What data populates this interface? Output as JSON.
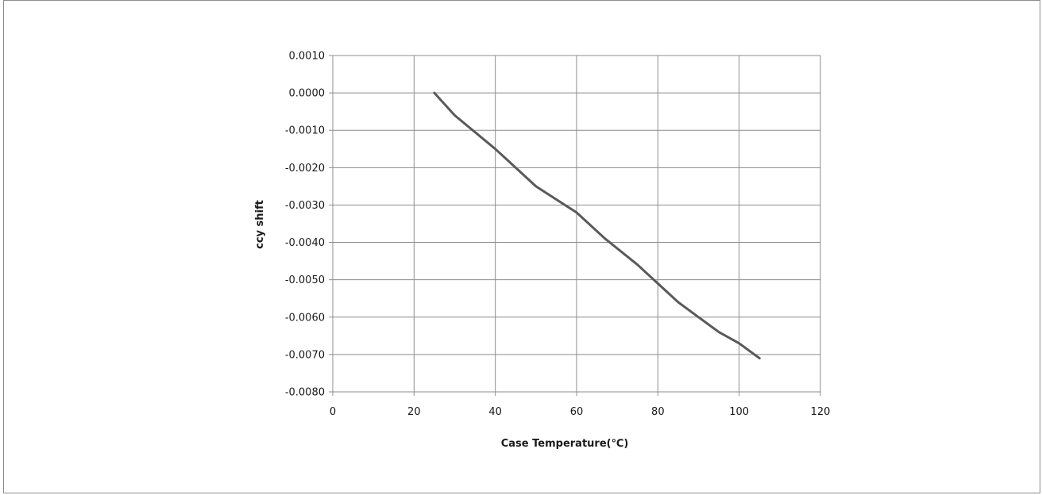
{
  "chart_data": {
    "type": "line",
    "title": "",
    "xlabel": "Case Temperature(℃)",
    "ylabel": "ccy shift",
    "xlim": [
      0,
      120
    ],
    "ylim": [
      -0.008,
      0.001
    ],
    "x_ticks": [
      0,
      20,
      40,
      60,
      80,
      100,
      120
    ],
    "y_ticks": [
      0.001,
      0,
      -0.001,
      -0.002,
      -0.003,
      -0.004,
      -0.005,
      -0.006,
      -0.007,
      -0.008
    ],
    "x_tick_labels": [
      "0",
      "20",
      "40",
      "60",
      "80",
      "100",
      "120"
    ],
    "y_tick_labels": [
      "0.0010",
      "0.0000",
      "-0.0010",
      "-0.0020",
      "-0.0030",
      "-0.0040",
      "-0.0050",
      "-0.0060",
      "-0.0070",
      "-0.0080"
    ],
    "grid": true,
    "legend": "none",
    "line_color": "#595959",
    "grid_color": "#8c8c8c",
    "series": [
      {
        "x": [
          25,
          30,
          40,
          50,
          60,
          67,
          75,
          80,
          85,
          90,
          95,
          100,
          105
        ],
        "y": [
          0.0,
          -0.0006,
          -0.0015,
          -0.0025,
          -0.0032,
          -0.0039,
          -0.0046,
          -0.0051,
          -0.0056,
          -0.006,
          -0.0064,
          -0.0067,
          -0.0071
        ]
      }
    ]
  }
}
